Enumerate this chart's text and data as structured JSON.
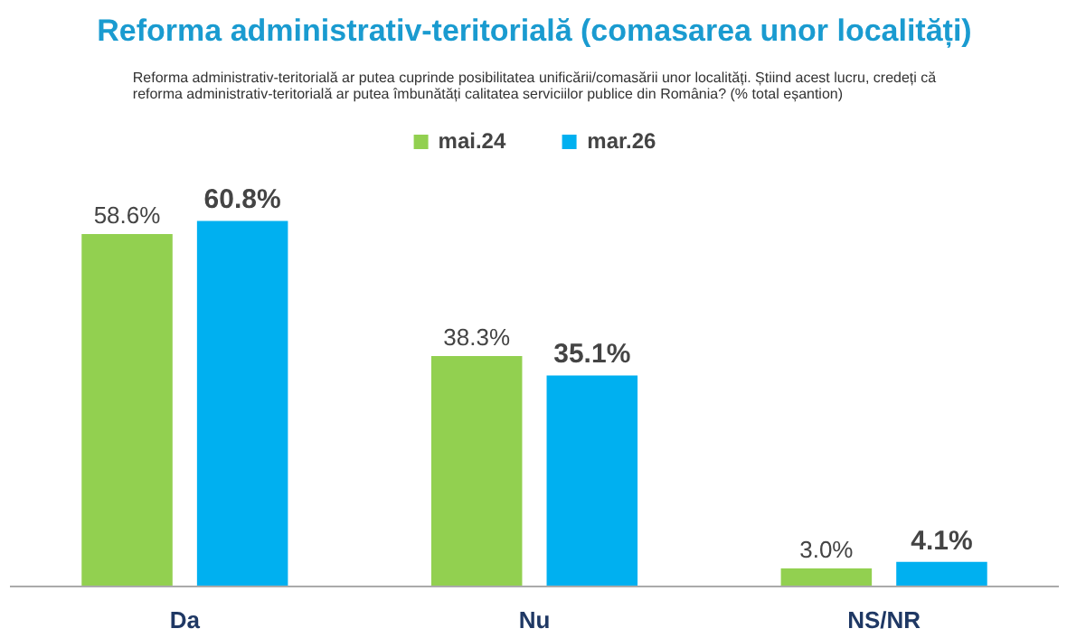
{
  "chart_data": {
    "type": "bar",
    "title": "Reforma administrativ-teritorială (comasarea unor localități)",
    "subtitle": "Reforma administrativ-teritorială ar putea cuprinde posibilitatea unificării/comasării unor localități. Știind acest lucru, credeți că reforma administrativ-teritorială ar putea îmbunătăți calitatea serviciilor publice din România? (% total eșantion)",
    "categories": [
      "Da",
      "Nu",
      "NS/NR"
    ],
    "series": [
      {
        "name": "mai.24",
        "color": "#92d050",
        "values": [
          58.6,
          38.3,
          3.0
        ],
        "value_labels": [
          "58.6%",
          "38.3%",
          "3.0%"
        ]
      },
      {
        "name": "mar.26",
        "color": "#00b0f0",
        "values": [
          60.8,
          35.1,
          4.1
        ],
        "value_labels": [
          "60.8%",
          "35.1%",
          "4.1%"
        ]
      }
    ],
    "legend": "top",
    "grid": false
  }
}
